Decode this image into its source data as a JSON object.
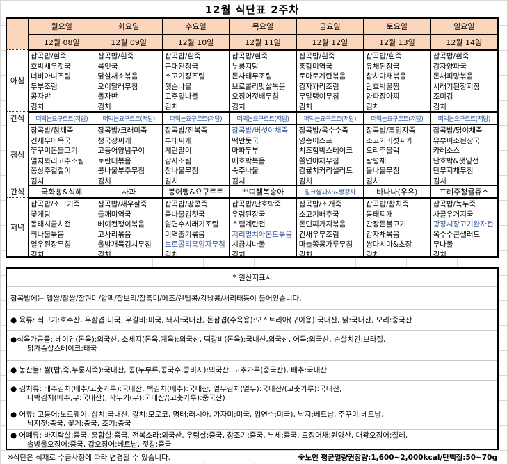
{
  "title": "12월 식단표 2주차",
  "colors": {
    "header_bg": "#FBD5B9",
    "highlight": "#2F5597",
    "gridline": "#D9D9D9",
    "border": "#000000"
  },
  "table": {
    "days": [
      {
        "name": "월요일",
        "date": "12월 08일"
      },
      {
        "name": "화요일",
        "date": "12월 09일"
      },
      {
        "name": "수요일",
        "date": "12월 10일"
      },
      {
        "name": "목요일",
        "date": "12월 11일"
      },
      {
        "name": "금요일",
        "date": "12월 12일"
      },
      {
        "name": "토요일",
        "date": "12월 13일"
      },
      {
        "name": "일요일",
        "date": "12월 14일"
      }
    ],
    "rows": [
      {
        "label": "아침",
        "type": "meal",
        "cells": [
          [
            "잡곡밥/흰죽",
            "호박새우젓국",
            "너비아니조림",
            "두부조림",
            "콩자반",
            "김치"
          ],
          [
            "잡곡밥/흰죽",
            "북엇국",
            "닭살채소볶음",
            "오이달래무침",
            "돌자반",
            "김치"
          ],
          [
            "잡곡밥/흰죽",
            "근대된장국",
            "소고기장조림",
            "깻순나물",
            "고춧잎나물",
            "김치"
          ],
          [
            "잡곡밥/흰죽",
            "누룽지탕",
            "돈사태무조림",
            "브로콜리맛살볶음",
            "오징어젓배무침",
            "김치"
          ],
          [
            "잡곡밥/흰죽",
            "홍합미역국",
            "토마토계란볶음",
            "감자꽈리조림",
            "무말랭이무침",
            "김치"
          ],
          [
            "잡곡밥/흰죽",
            "유채된장국",
            "참치야채볶음",
            "단호박꿀찜",
            "양파장아찌",
            "김치"
          ],
          [
            "잡곡밥/흰죽",
            "감자양파국",
            "돈채피망볶음",
            "시래기된장지짐",
            "조미김",
            "김치"
          ]
        ]
      },
      {
        "label": "간식",
        "type": "snack",
        "small": true,
        "cells": [
          {
            "text": "떠먹는요구르트(저당)",
            "hl": true
          },
          {
            "text": "떠먹는요구르트(저당)",
            "hl": true
          },
          {
            "text": "떠먹는요구르트(저당)",
            "hl": true
          },
          {
            "text": "떠먹는요구르트(저당)",
            "hl": true
          },
          {
            "text": "떠먹는요구르트(저당)",
            "hl": true
          },
          {
            "text": "떠먹는요구르트(저당)",
            "hl": true
          },
          {
            "text": "떠먹는요구르트(저당)",
            "hl": true
          }
        ]
      },
      {
        "label": "점심",
        "type": "meal",
        "cells": [
          [
            "잡곡밥/참깨죽",
            "건새우아욱국",
            "쭈꾸미돈불고기",
            "멸치꽈리고추조림",
            "쫑상추겉절이",
            "김치"
          ],
          [
            "잡곡밥/크래미죽",
            "청국장찌개",
            "고등어양념구이",
            "토란대볶음",
            "콩나물부추무침",
            "김치"
          ],
          [
            "잡곡밥/전복죽",
            "부대찌개",
            "계란말이",
            "감자조림",
            "참나물무침",
            "김치"
          ],
          [
            {
              "text": "잡곡밥/버섯야채죽",
              "hl": true
            },
            "떡만둣국",
            "마파두부",
            "애호박볶음",
            "숙주나물",
            "김치"
          ],
          [
            "잡곡밥/옥수수죽",
            "양송이스프",
            "치즈함박스테이크",
            "쫄면야채무침",
            "감귤치커리샐러드",
            "김치"
          ],
          [
            "잡곡밥/흑임자죽",
            "소고기버섯찌개",
            "오리주물럭",
            "탕평채",
            "돌나물무침",
            "김치"
          ],
          [
            "잡곡밥/닭야채죽",
            "유부미소된장국",
            "카레소스",
            "단호박&깻잎전",
            "단무지채무침",
            "김치"
          ]
        ]
      },
      {
        "label": "간식",
        "type": "snack",
        "cells": [
          "국화빵&식혜",
          "사과",
          "붕어빵&요구르트",
          "쁘띠첼복숭아",
          {
            "text": "밀크쌀과자&생강차",
            "hl": true,
            "sm": true
          },
          "바나나(우유)",
          "프레주청귤쥬스"
        ]
      },
      {
        "label": "저녁",
        "type": "meal",
        "cells": [
          [
            "잡곡밥/소고기죽",
            "꽃게탕",
            "동태시금치전",
            "취나물볶음",
            "열우된장무침",
            "김치"
          ],
          [
            "잡곡밥/새우살죽",
            "들깨미역국",
            "베이컨팽이볶음",
            "고사리볶음",
            "올방개묵김치무침",
            "김치"
          ],
          [
            "잡곡밥/땅콩죽",
            "콩나물김칫국",
            "임연수시래기조림",
            "미역줄기볶음",
            {
              "text": "브로콜리흑임자무침",
              "hl": true
            },
            "김치"
          ],
          [
            "잡곡밥/단호박죽",
            "우렁된장국",
            "스팸계란전",
            {
              "text": "지리멸치아몬드볶음",
              "hl": true
            },
            "시금치나물",
            "김치"
          ],
          [
            "잡곡밥/조개죽",
            "소고기배추국",
            "돈민찌가지볶음",
            "건새우무조림",
            "마늘쫑콩가루무침",
            "김치"
          ],
          [
            "잡곡밥/참치죽",
            "동태찌개",
            "간장돈불고기",
            "감자채볶음",
            "쌈다시마&초장",
            "김치"
          ],
          [
            "잡곡밥/녹두죽",
            "사골우거지국",
            {
              "text": "광장시장고기완자전",
              "hl": true
            },
            "옥수수콘샐러드",
            "무나물",
            "김치"
          ]
        ]
      }
    ]
  },
  "origin": {
    "heading": "* 원산지표시",
    "intro": "잡곡밥에는 멥쌀/찹쌀/찰현미/압맥/찰보리/찰흑미/메조/렌틸콩/강낭콩/서리태등이 들어있습니다.",
    "bullets": [
      {
        "lines": [
          "● 육류: 쇠고기:호주산, 우삼겹:미국, 우갈비:미국, 돼지:국내산, 돈삼겹(수육용):오스트리아(구이용):국내산, 닭:국내산, 오리:중국산"
        ]
      },
      {
        "lines": [
          "●식육가공품: 베이컨(돈육):외국산, 소세지(돈육,계육):외국산, 떡갈비(돈육):국내산,외국산, 어묵:외국산, 순살치킨:브라질,",
          "닭가슴살스테이크:태국"
        ]
      },
      {
        "lines": [
          "● 농산물: 쌀(밥,죽,누룽지죽):국내산, 콩(두부류,콩국수,콩비지):외국산, 고추가루(중국산), 배추:국내산"
        ]
      },
      {
        "lines": [
          "● 김치류: 배추김치(배추/고춧가루):국내산, 백김치(배추):국내산, 열무김치(열무):국내산/(고춧가루):국내산,",
          "나박김치(배추,무:국내산), 깍두기(무):국내산/(고춧가루):중국산)"
        ]
      },
      {
        "lines": [
          "● 어류: 고등어:노르웨이, 삼치:국내산, 갈치:모로코, 명태:러시아, 가자미:미국, 임연수:미국), 낙지:베트남, 주꾸미:베트남,",
          "낙지젓:중국, 꽃게:중국, 조기:중국"
        ]
      },
      {
        "lines": [
          "● 어폐류: 바지락살:중국, 홍합살:중국, 전복소라:외국산, 우렁살:중국, 참조기:중국, 부세:중국, 오징어채:원양산, 대왕오징어:칠레,",
          "솔방울오징어:중국, 갑오징어:베트남, 젓갈:중국"
        ]
      }
    ]
  },
  "footer": {
    "left": "※식단은 식재로 수급사정에 따라 변경될 수 있습니다.",
    "right": "※노인 평균열량권장량:1,600~2,000kcal/단백질:50~70g"
  }
}
